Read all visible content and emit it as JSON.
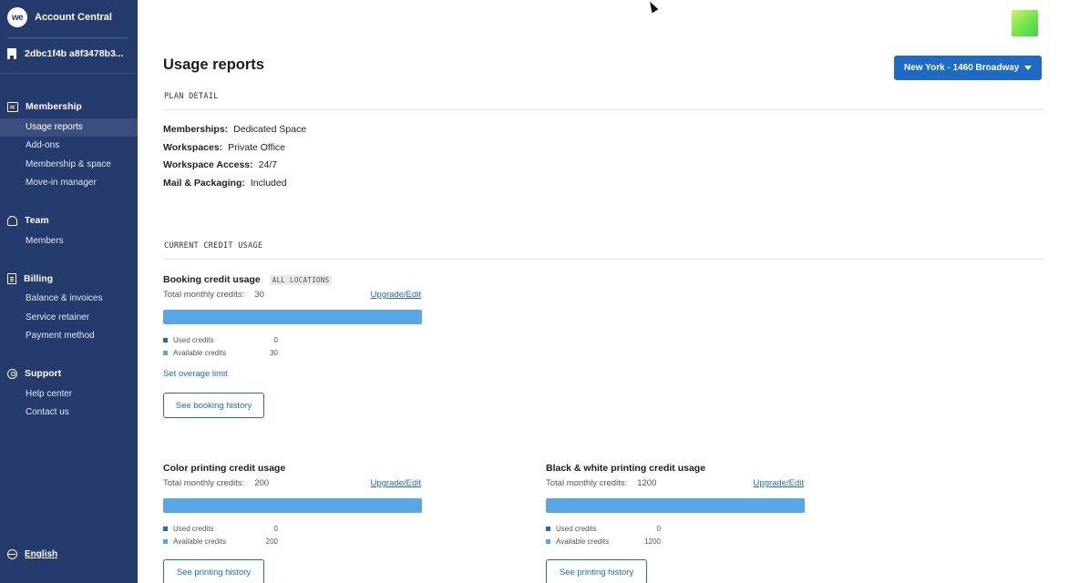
{
  "sidebar": {
    "app_title": "Account Central",
    "logo_text": "we",
    "account_id": "2dbc1f4b a8f3478b3...",
    "sections": [
      {
        "title": "Membership",
        "icon": "membership-card-icon",
        "items": [
          "Usage reports",
          "Add-ons",
          "Membership & space",
          "Move-in manager"
        ],
        "active_item": "Usage reports"
      },
      {
        "title": "Team",
        "icon": "team-icon",
        "items": [
          "Members"
        ]
      },
      {
        "title": "Billing",
        "icon": "billing-receipt-icon",
        "items": [
          "Balance & invoices",
          "Service retainer",
          "Payment method"
        ]
      },
      {
        "title": "Support",
        "icon": "support-lifebuoy-icon",
        "items": [
          "Help center",
          "Contact us"
        ]
      }
    ],
    "language": "English"
  },
  "header": {
    "page_title": "Usage reports",
    "location_selector": "New York - 1460 Broadway"
  },
  "plan_detail": {
    "section_label": "PLAN DETAIL",
    "rows": [
      {
        "label": "Memberships:",
        "value": "Dedicated Space"
      },
      {
        "label": "Workspaces:",
        "value": "Private Office"
      },
      {
        "label": "Workspace Access:",
        "value": "24/7"
      },
      {
        "label": "Mail & Packaging:",
        "value": "Included"
      }
    ]
  },
  "credit_usage": {
    "section_label": "CURRENT CREDIT USAGE",
    "booking": {
      "title": "Booking credit usage",
      "tag": "ALL LOCATIONS",
      "total_label": "Total monthly credits:",
      "total_value": "30",
      "upgrade_label": "Upgrade/Edit",
      "used_label": "Used credits",
      "used_value": "0",
      "available_label": "Available credits",
      "available_value": "30",
      "used_fraction": 0,
      "overage_label": "Set overage limit",
      "history_button": "See booking history"
    },
    "color_printing": {
      "title": "Color printing credit usage",
      "total_label": "Total monthly credits:",
      "total_value": "200",
      "upgrade_label": "Upgrade/Edit",
      "used_label": "Used credits",
      "used_value": "0",
      "available_label": "Available credits",
      "available_value": "200",
      "used_fraction": 0,
      "history_button": "See printing history"
    },
    "bw_printing": {
      "title": "Black & white printing credit usage",
      "total_label": "Total monthly credits:",
      "total_value": "1200",
      "upgrade_label": "Upgrade/Edit",
      "used_label": "Used credits",
      "used_value": "0",
      "available_label": "Available credits",
      "available_value": "1200",
      "used_fraction": 0,
      "history_button": "See printing history"
    }
  },
  "colors": {
    "sidebar_bg": "#253b6e",
    "accent_blue": "#1f6bc4",
    "available_bar": "#5aa6e5",
    "used_swatch": "#1f6bc4",
    "available_swatch": "#5aa6e5"
  }
}
